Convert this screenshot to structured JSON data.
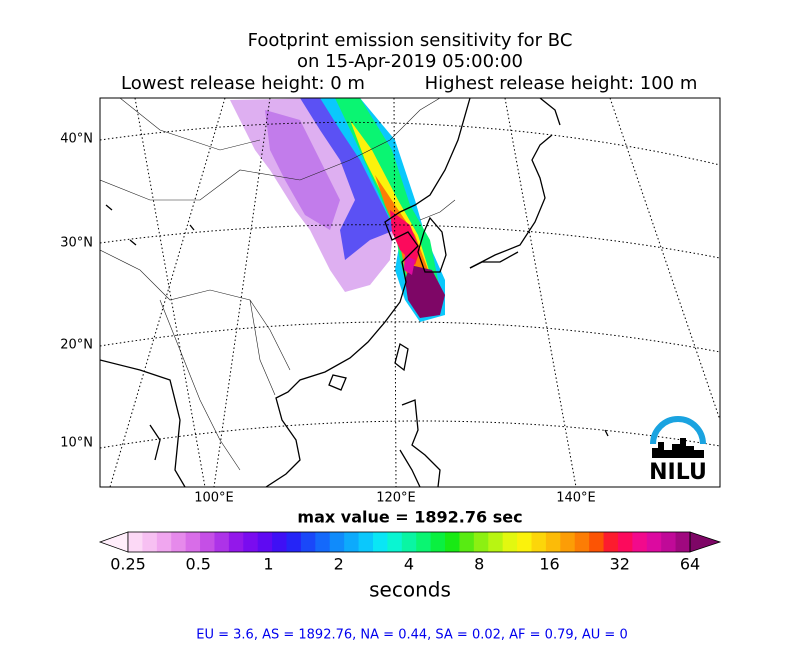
{
  "title": {
    "line1": "Footprint emission sensitivity for BC",
    "line2": "on 15-Apr-2019 05:00:00"
  },
  "release": {
    "lowest": "Lowest release height: 0 m",
    "highest": "Highest release height: 100 m"
  },
  "map": {
    "lat_labels": [
      "40°N",
      "30°N",
      "20°N",
      "10°N"
    ],
    "lon_labels": [
      "100°E",
      "120°E",
      "140°E"
    ],
    "logo": "NILU"
  },
  "max_value": "max value = 1892.76 sec",
  "colorbar": {
    "ticks": [
      0.25,
      0.5,
      1,
      2,
      4,
      8,
      16,
      32,
      64
    ],
    "label": "seconds",
    "colors": [
      "#ffeefb",
      "#fcd9f6",
      "#f7c0f2",
      "#f0a6ef",
      "#e68aeb",
      "#d86de8",
      "#c54fe6",
      "#ad33e8",
      "#9318ea",
      "#7a0cef",
      "#5f0af2",
      "#3f10f5",
      "#2525f7",
      "#1a48f9",
      "#1469fb",
      "#108bfb",
      "#0daafc",
      "#0bc8fc",
      "#0ae6f5",
      "#0af5d2",
      "#0af5a3",
      "#0af572",
      "#0af040",
      "#18ea14",
      "#58eb12",
      "#8cf012",
      "#b8f512",
      "#e2f810",
      "#fbf20c",
      "#fcd60a",
      "#fcbb08",
      "#fc9d06",
      "#fc7d05",
      "#fc5404",
      "#fc1c2e",
      "#fc0a5c",
      "#f20a8c",
      "#dc0aa0",
      "#c00a98",
      "#a0087f",
      "#7e0666"
    ]
  },
  "footer": "EU = 3.6,  AS = 1892.76,  NA = 0.44,  SA = 0.02,  AF = 0.79,  AU = 0"
}
